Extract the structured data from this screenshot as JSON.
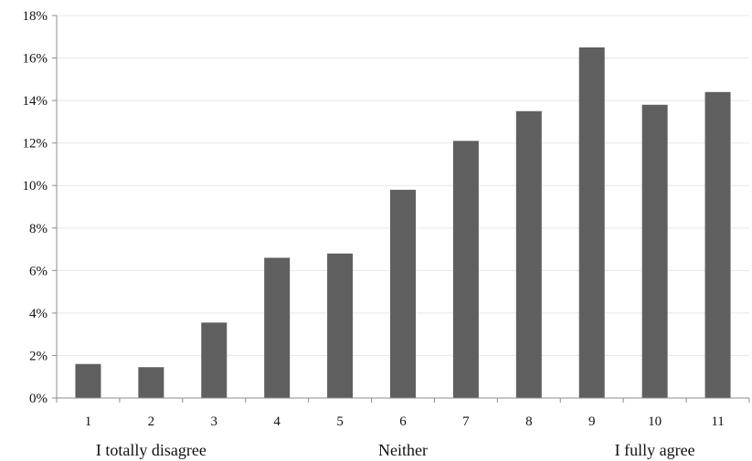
{
  "chart_data": {
    "type": "bar",
    "categories": [
      "1",
      "2",
      "3",
      "4",
      "5",
      "6",
      "7",
      "8",
      "9",
      "10",
      "11"
    ],
    "values": [
      1.6,
      1.45,
      3.55,
      6.6,
      6.8,
      9.8,
      12.1,
      13.5,
      16.5,
      13.8,
      14.4
    ],
    "ylim": [
      0,
      18
    ],
    "yticks": [
      "0%",
      "2%",
      "4%",
      "6%",
      "8%",
      "10%",
      "12%",
      "14%",
      "16%",
      "18%"
    ],
    "grid": true,
    "bar_color": "#5f5f5f",
    "grid_color": "#e8e8e8",
    "axis_color": "#8c8c8c",
    "group_labels": [
      {
        "text": "I totally disagree",
        "category": "2"
      },
      {
        "text": "Neither",
        "category": "6"
      },
      {
        "text": "I fully agree",
        "category": "10"
      }
    ]
  }
}
